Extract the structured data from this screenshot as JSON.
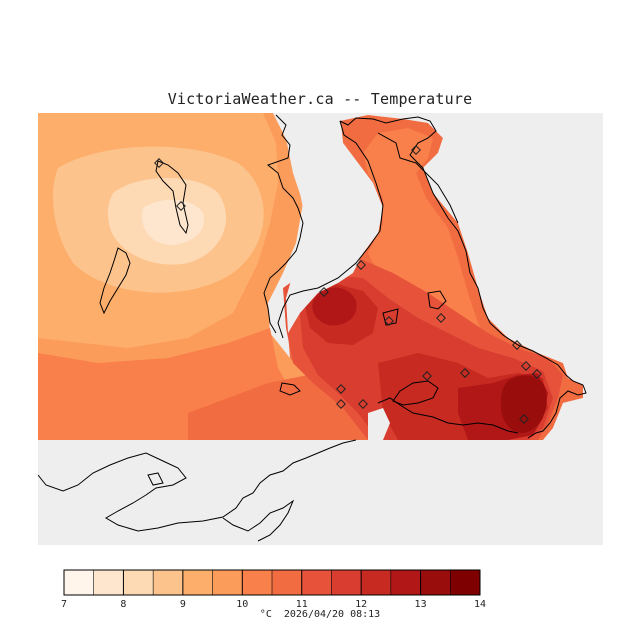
{
  "title": "VictoriaWeather.ca -- Temperature",
  "colors": {
    "no_data": "#eeeeee",
    "coast": "#000000",
    "scale": [
      "#fff5eb",
      "#fee6ce",
      "#fdd9b4",
      "#fdc38d",
      "#fdae6b",
      "#fc9c5b",
      "#f9804a",
      "#f26c42",
      "#e6533a",
      "#d83d2f",
      "#c62a20",
      "#b21717",
      "#990d0d",
      "#7f0000"
    ]
  },
  "legend": {
    "min": 7,
    "max": 14,
    "ticks": [
      "7",
      "8",
      "9",
      "10",
      "11",
      "12",
      "13",
      "14"
    ],
    "unit": "°C"
  },
  "timestamp": "2026/04/20 08:13",
  "stations_count": 16
}
